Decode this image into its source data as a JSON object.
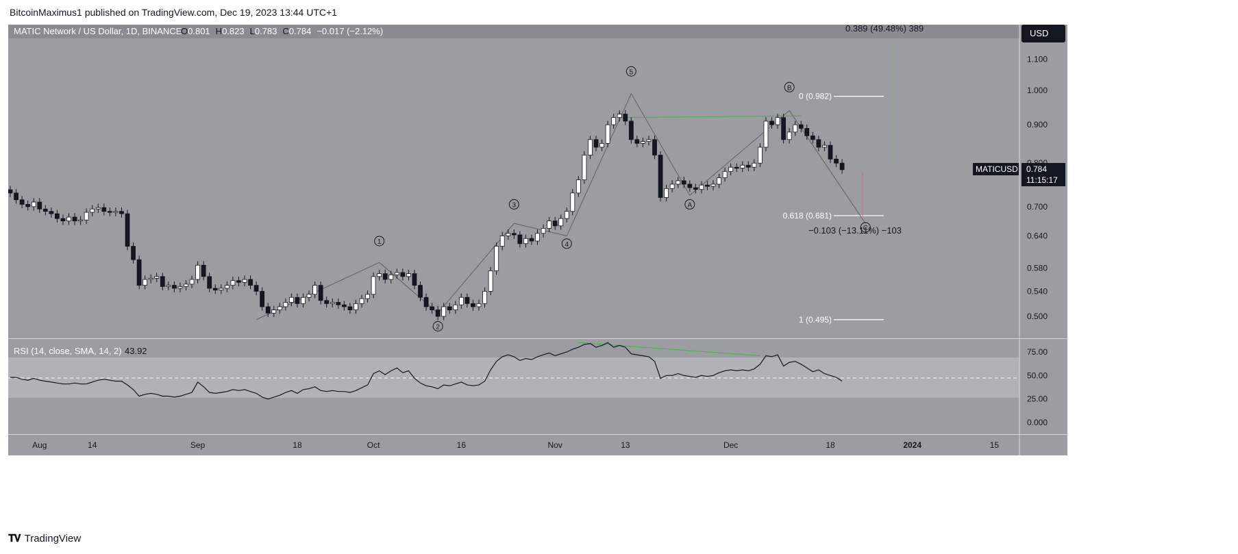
{
  "publish_line": "BitcoinMaximus1 published on TradingView.com, Dec 19, 2023 13:44 UTC+1",
  "footer_logo": "TradingView",
  "colors": {
    "pane_bg": "#8f9197",
    "price_bg": "#9b9da3",
    "rsi_band": "#a9abb0",
    "candle_up": "#ffffff",
    "candle_down": "#131722",
    "divergence": "#4caf50",
    "wave_line": "#5f6166",
    "fib_line": "#ffffff"
  },
  "chart_data": [
    {
      "type": "candlestick",
      "symbol_line": {
        "name": "MATIC Network / US Dollar, 1D, BINANCE",
        "ohlc": [
          {
            "key": "O",
            "value": "0.801"
          },
          {
            "key": "H",
            "value": "0.823"
          },
          {
            "key": "L",
            "value": "0.783"
          },
          {
            "key": "C",
            "value": "0.784"
          }
        ],
        "change": "−0.017 (−2.12%)"
      },
      "currency": "USD",
      "price_label": {
        "symbol": "MATICUSD",
        "price": "0.784",
        "countdown": "11:15:17"
      },
      "y_ticks": [
        "1.100",
        "1.000",
        "0.900",
        "0.800",
        "0.700",
        "0.640",
        "0.580",
        "0.540",
        "0.500"
      ],
      "y_tick_values": [
        1.1,
        1.0,
        0.9,
        0.8,
        0.7,
        0.64,
        0.58,
        0.54,
        0.5
      ],
      "scale": "log",
      "x_ticks": [
        {
          "label": "Aug",
          "day": 5
        },
        {
          "label": "14",
          "day": 14
        },
        {
          "label": "Sep",
          "day": 32
        },
        {
          "label": "18",
          "day": 49
        },
        {
          "label": "Oct",
          "day": 62
        },
        {
          "label": "16",
          "day": 77
        },
        {
          "label": "Nov",
          "day": 93
        },
        {
          "label": "13",
          "day": 105
        },
        {
          "label": "Dec",
          "day": 123
        },
        {
          "label": "18",
          "day": 140
        },
        {
          "label": "2024",
          "day": 154
        },
        {
          "label": "15",
          "day": 168
        }
      ],
      "closes": [
        0.73,
        0.715,
        0.705,
        0.7,
        0.71,
        0.695,
        0.69,
        0.685,
        0.675,
        0.67,
        0.678,
        0.67,
        0.672,
        0.688,
        0.695,
        0.698,
        0.69,
        0.688,
        0.69,
        0.685,
        0.62,
        0.595,
        0.55,
        0.56,
        0.562,
        0.565,
        0.548,
        0.55,
        0.545,
        0.548,
        0.552,
        0.56,
        0.585,
        0.565,
        0.545,
        0.542,
        0.545,
        0.55,
        0.558,
        0.555,
        0.56,
        0.55,
        0.54,
        0.515,
        0.505,
        0.51,
        0.515,
        0.522,
        0.53,
        0.52,
        0.53,
        0.535,
        0.55,
        0.525,
        0.52,
        0.522,
        0.518,
        0.515,
        0.51,
        0.52,
        0.528,
        0.535,
        0.565,
        0.57,
        0.56,
        0.568,
        0.572,
        0.565,
        0.57,
        0.55,
        0.53,
        0.515,
        0.51,
        0.5,
        0.515,
        0.51,
        0.518,
        0.53,
        0.52,
        0.515,
        0.52,
        0.54,
        0.575,
        0.62,
        0.64,
        0.645,
        0.642,
        0.625,
        0.635,
        0.63,
        0.645,
        0.655,
        0.67,
        0.66,
        0.675,
        0.69,
        0.73,
        0.76,
        0.82,
        0.86,
        0.84,
        0.85,
        0.9,
        0.92,
        0.93,
        0.91,
        0.86,
        0.85,
        0.855,
        0.86,
        0.82,
        0.72,
        0.74,
        0.75,
        0.758,
        0.75,
        0.742,
        0.738,
        0.748,
        0.745,
        0.75,
        0.765,
        0.78,
        0.79,
        0.788,
        0.795,
        0.79,
        0.8,
        0.84,
        0.91,
        0.9,
        0.92,
        0.86,
        0.88,
        0.9,
        0.89,
        0.87,
        0.86,
        0.84,
        0.845,
        0.81,
        0.8,
        0.784
      ],
      "wave_labels": [
        {
          "label": "1",
          "day": 63,
          "price": 0.63
        },
        {
          "label": "2",
          "day": 73,
          "price": 0.485
        },
        {
          "label": "3",
          "day": 86,
          "price": 0.705
        },
        {
          "label": "4",
          "day": 95,
          "price": 0.625
        },
        {
          "label": "5",
          "day": 106,
          "price": 1.06
        },
        {
          "label": "A",
          "day": 116,
          "price": 0.705
        },
        {
          "label": "B",
          "day": 133,
          "price": 1.01
        },
        {
          "label": "C",
          "day": 146,
          "price": 0.657
        }
      ],
      "fib_levels": [
        {
          "label": "0 (0.982)",
          "price": 0.982
        },
        {
          "label": "0.618 (0.681)",
          "price": 0.681
        },
        {
          "label": "1 (0.495)",
          "price": 0.495
        }
      ],
      "measure_top": "0.389 (49.48%) 389",
      "measure_bottom": "−0.103 (−13.11%) −103"
    },
    {
      "type": "line",
      "indicator": "RSI",
      "legend": "RSI (14, close, SMA, 14, 2)",
      "value": "43.92",
      "y_ticks": [
        "75.00",
        "50.00",
        "25.00",
        "0.000"
      ],
      "y_tick_values": [
        75,
        50,
        25,
        0
      ],
      "band": [
        30,
        70
      ],
      "values": [
        48,
        48,
        46,
        45,
        47,
        45,
        44,
        43,
        42,
        41,
        41,
        42,
        41,
        41,
        43,
        45,
        46,
        45,
        44,
        44,
        40,
        35,
        28,
        30,
        31,
        30,
        28,
        28,
        27,
        28,
        30,
        32,
        43,
        38,
        32,
        31,
        32,
        33,
        35,
        34,
        35,
        33,
        31,
        27,
        25,
        27,
        29,
        32,
        34,
        31,
        35,
        36,
        38,
        34,
        33,
        34,
        33,
        33,
        32,
        34,
        37,
        40,
        52,
        55,
        51,
        55,
        58,
        53,
        55,
        47,
        42,
        39,
        38,
        36,
        40,
        39,
        41,
        43,
        40,
        39,
        40,
        44,
        56,
        65,
        70,
        72,
        70,
        66,
        68,
        67,
        70,
        72,
        74,
        71,
        73,
        75,
        78,
        80,
        83,
        84,
        80,
        82,
        85,
        80,
        82,
        80,
        73,
        72,
        71,
        70,
        65,
        47,
        50,
        50,
        52,
        50,
        49,
        48,
        50,
        49,
        50,
        53,
        55,
        56,
        55,
        56,
        55,
        57,
        62,
        71,
        70,
        72,
        60,
        64,
        65,
        62,
        58,
        54,
        56,
        52,
        50,
        48,
        44
      ]
    }
  ]
}
